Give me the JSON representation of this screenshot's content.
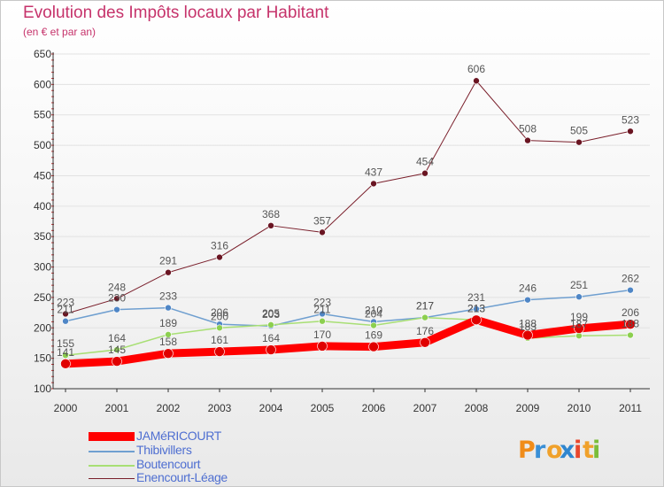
{
  "title": "Evolution des Impôts locaux par Habitant",
  "subtitle": "(en € et par an)",
  "colors": {
    "title": "#c6336b",
    "axis": "#333333",
    "grid": "#e2e2e2",
    "tick_text": "#333333",
    "data_label": "#555555",
    "legend_text": "#4f6fd1"
  },
  "chart_data": {
    "type": "line",
    "title": "Evolution des Impôts locaux par Habitant",
    "subtitle": "(en € et par an)",
    "xlabel": "",
    "ylabel": "",
    "ylim": [
      100,
      650
    ],
    "yticks": [
      100,
      150,
      200,
      250,
      300,
      350,
      400,
      450,
      500,
      550,
      600,
      650
    ],
    "grid": "horizontal",
    "legend_position": "bottom-left",
    "categories": [
      "2000",
      "2001",
      "2002",
      "2003",
      "2004",
      "2005",
      "2006",
      "2007",
      "2008",
      "2009",
      "2010",
      "2011"
    ],
    "series": [
      {
        "name": "Enencourt-Léage",
        "color": "#7a1f2b",
        "marker": "#6a1522",
        "width": 1,
        "values": [
          223,
          248,
          291,
          316,
          368,
          357,
          437,
          454,
          606,
          508,
          505,
          523
        ]
      },
      {
        "name": "Thibivillers",
        "color": "#6f9fd0",
        "marker": "#4f86c6",
        "width": 1.5,
        "values": [
          211,
          230,
          233,
          206,
          203,
          223,
          210,
          217,
          231,
          246,
          251,
          262
        ]
      },
      {
        "name": "Boutencourt",
        "color": "#a8df74",
        "marker": "#8ccf4f",
        "width": 1.5,
        "values": [
          155,
          164,
          189,
          200,
          205,
          211,
          204,
          217,
          213,
          183,
          187,
          188
        ]
      },
      {
        "name": "JAMéRICOURT",
        "color": "#ff0000",
        "marker": "#e00000",
        "width": 9,
        "values": [
          141,
          145,
          158,
          161,
          164,
          170,
          169,
          176,
          213,
          188,
          199,
          206
        ]
      }
    ]
  },
  "legend": [
    {
      "label": "JAMéRICOURT",
      "color": "#ff0000"
    },
    {
      "label": "Thibivillers",
      "color": "#6f9fd0"
    },
    {
      "label": "Boutencourt",
      "color": "#a8df74"
    },
    {
      "label": "Enencourt-Léage",
      "color": "#7a1f2b"
    }
  ],
  "logo": {
    "text": "Proxiti",
    "letters": [
      "P",
      "r",
      "o",
      "x",
      "i",
      "t",
      "i"
    ],
    "letter_colors": [
      "#f08c1a",
      "#3a8fd6",
      "#f0a12b",
      "#2f86cf",
      "#e8462d",
      "#f0a12b",
      "#7bbd3a"
    ]
  }
}
